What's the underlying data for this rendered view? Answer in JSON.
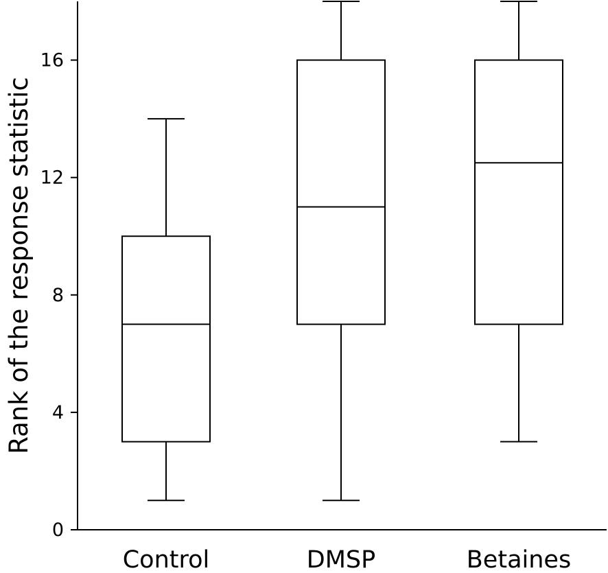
{
  "chart_data": {
    "type": "boxplot",
    "ylabel": "Rank of the response statistic",
    "xlabel": "",
    "ylim": [
      0,
      18
    ],
    "yticks": [
      0,
      4,
      8,
      12,
      16
    ],
    "grid": false,
    "categories": [
      "Control",
      "DMSP",
      "Betaines"
    ],
    "boxes": [
      {
        "category": "Control",
        "min": 1,
        "q1": 3,
        "median": 7,
        "q3": 10,
        "max": 14
      },
      {
        "category": "DMSP",
        "min": 1,
        "q1": 7,
        "median": 11,
        "q3": 16,
        "max": 18
      },
      {
        "category": "Betaines",
        "min": 3,
        "q1": 7,
        "median": 12.5,
        "q3": 16,
        "max": 18
      }
    ]
  }
}
